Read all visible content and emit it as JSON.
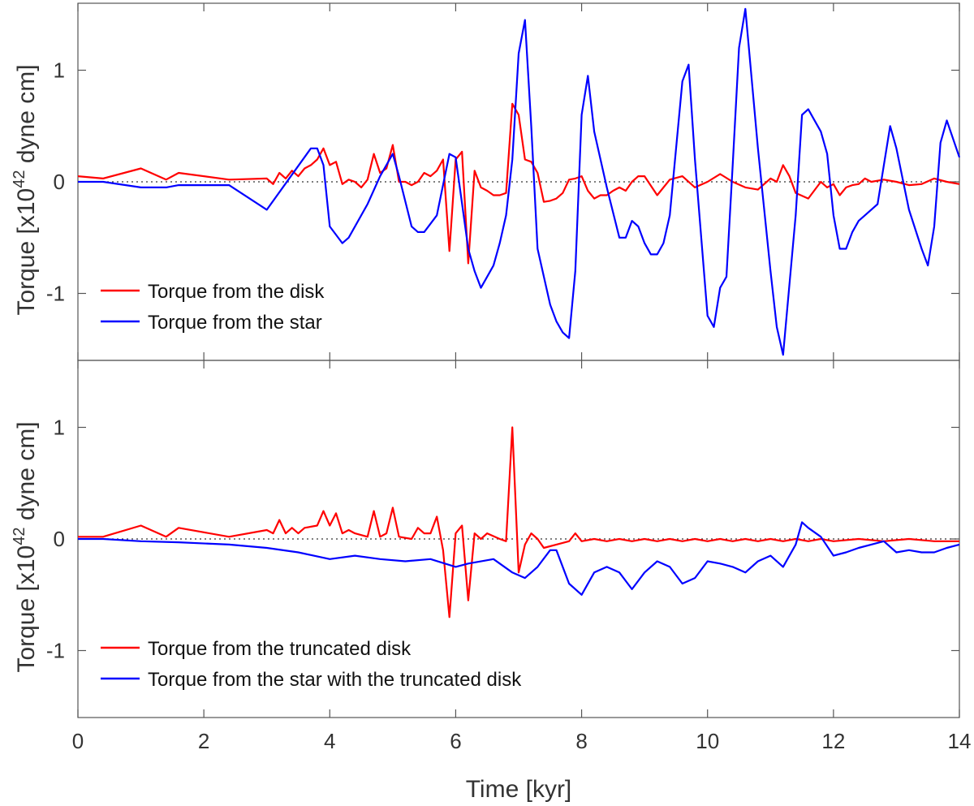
{
  "chart_data": [
    {
      "type": "line",
      "panel": "top",
      "title": "",
      "xlabel": "",
      "ylabel": "Torque [x10",
      "ylabel_exp": "42",
      "ylabel_unit": " dyne cm]",
      "xlim": [
        0,
        14
      ],
      "ylim": [
        -1.6,
        1.6
      ],
      "yticks": [
        -1,
        0,
        1
      ],
      "ytick_labels": [
        "-1",
        "0",
        "1"
      ],
      "zero_line": "dotted",
      "legend_position": "bottom-left",
      "series": [
        {
          "name": "Torque from the disk",
          "color": "#ff0000",
          "x": [
            0,
            0.4,
            1.0,
            1.4,
            1.6,
            2.4,
            3.0,
            3.1,
            3.2,
            3.3,
            3.4,
            3.5,
            3.6,
            3.7,
            3.8,
            3.9,
            4.0,
            4.1,
            4.2,
            4.3,
            4.4,
            4.5,
            4.6,
            4.7,
            4.8,
            4.9,
            5.0,
            5.1,
            5.2,
            5.3,
            5.4,
            5.5,
            5.6,
            5.7,
            5.8,
            5.9,
            6.0,
            6.1,
            6.2,
            6.3,
            6.4,
            6.5,
            6.6,
            6.7,
            6.8,
            6.9,
            7.0,
            7.1,
            7.2,
            7.3,
            7.4,
            7.5,
            7.6,
            7.7,
            7.8,
            7.9,
            8.0,
            8.1,
            8.2,
            8.3,
            8.4,
            8.5,
            8.6,
            8.7,
            8.8,
            8.9,
            9.0,
            9.2,
            9.4,
            9.6,
            9.8,
            10.0,
            10.2,
            10.4,
            10.6,
            10.8,
            11.0,
            11.1,
            11.2,
            11.3,
            11.4,
            11.6,
            11.8,
            11.9,
            12.0,
            12.1,
            12.2,
            12.3,
            12.4,
            12.5,
            12.6,
            12.8,
            13.0,
            13.2,
            13.4,
            13.6,
            13.8,
            14.0
          ],
          "y": [
            0.05,
            0.03,
            0.12,
            0.02,
            0.08,
            0.02,
            0.03,
            -0.02,
            0.08,
            0.03,
            0.1,
            0.05,
            0.12,
            0.15,
            0.2,
            0.3,
            0.15,
            0.18,
            -0.02,
            0.02,
            0.0,
            -0.05,
            0.02,
            0.25,
            0.08,
            0.12,
            0.33,
            0.0,
            0.0,
            -0.03,
            0.0,
            0.08,
            0.05,
            0.1,
            0.2,
            -0.62,
            0.2,
            0.27,
            -0.73,
            0.1,
            -0.05,
            -0.08,
            -0.12,
            -0.12,
            -0.1,
            0.7,
            0.6,
            0.2,
            0.18,
            0.08,
            -0.18,
            -0.17,
            -0.15,
            -0.1,
            0.02,
            0.03,
            0.05,
            -0.08,
            -0.15,
            -0.12,
            -0.12,
            -0.08,
            -0.05,
            -0.08,
            0.0,
            0.05,
            0.05,
            -0.12,
            0.02,
            0.05,
            -0.05,
            0.0,
            0.07,
            0.0,
            -0.05,
            -0.07,
            0.03,
            0.0,
            0.15,
            0.05,
            -0.1,
            -0.15,
            0.0,
            -0.05,
            -0.02,
            -0.12,
            -0.05,
            -0.03,
            -0.02,
            0.03,
            0.0,
            0.02,
            0.0,
            -0.03,
            -0.02,
            0.03,
            0.0,
            -0.02
          ]
        },
        {
          "name": "Torque from the star",
          "color": "#0000ff",
          "x": [
            0,
            0.4,
            1.0,
            1.4,
            1.6,
            2.4,
            3.0,
            3.7,
            3.8,
            3.9,
            4.0,
            4.2,
            4.3,
            4.6,
            4.8,
            5.0,
            5.1,
            5.3,
            5.4,
            5.5,
            5.7,
            5.9,
            6.0,
            6.2,
            6.3,
            6.4,
            6.5,
            6.6,
            6.7,
            6.8,
            6.9,
            7.0,
            7.1,
            7.2,
            7.3,
            7.5,
            7.6,
            7.7,
            7.8,
            7.9,
            8.0,
            8.1,
            8.2,
            8.4,
            8.6,
            8.7,
            8.8,
            8.9,
            9.0,
            9.1,
            9.2,
            9.3,
            9.4,
            9.6,
            9.7,
            9.8,
            10.0,
            10.1,
            10.2,
            10.3,
            10.4,
            10.5,
            10.6,
            10.8,
            11.0,
            11.1,
            11.2,
            11.4,
            11.5,
            11.6,
            11.7,
            11.8,
            11.9,
            12.0,
            12.1,
            12.2,
            12.3,
            12.4,
            12.5,
            12.7,
            12.9,
            13.0,
            13.2,
            13.4,
            13.5,
            13.6,
            13.7,
            13.8,
            14.0
          ],
          "y": [
            0.0,
            0.0,
            -0.05,
            -0.05,
            -0.03,
            -0.03,
            -0.25,
            0.3,
            0.3,
            0.15,
            -0.4,
            -0.55,
            -0.5,
            -0.2,
            0.05,
            0.25,
            0.05,
            -0.4,
            -0.45,
            -0.45,
            -0.3,
            0.25,
            0.22,
            -0.6,
            -0.8,
            -0.95,
            -0.85,
            -0.75,
            -0.55,
            -0.3,
            0.2,
            1.15,
            1.45,
            0.5,
            -0.6,
            -1.1,
            -1.25,
            -1.35,
            -1.4,
            -0.8,
            0.6,
            0.95,
            0.45,
            -0.05,
            -0.5,
            -0.5,
            -0.35,
            -0.4,
            -0.55,
            -0.65,
            -0.65,
            -0.55,
            -0.3,
            0.9,
            1.05,
            0.2,
            -1.2,
            -1.3,
            -0.95,
            -0.85,
            0.15,
            1.2,
            1.55,
            0.3,
            -0.8,
            -1.3,
            -1.55,
            -0.3,
            0.6,
            0.65,
            0.55,
            0.45,
            0.25,
            -0.3,
            -0.6,
            -0.6,
            -0.45,
            -0.35,
            -0.3,
            -0.2,
            0.5,
            0.3,
            -0.25,
            -0.6,
            -0.75,
            -0.4,
            0.35,
            0.55,
            0.22
          ]
        }
      ]
    },
    {
      "type": "line",
      "panel": "bottom",
      "title": "",
      "xlabel": "Time [kyr]",
      "ylabel": "Torque [x10",
      "ylabel_exp": "42",
      "ylabel_unit": " dyne cm]",
      "xlim": [
        0,
        14
      ],
      "ylim": [
        -1.6,
        1.6
      ],
      "yticks": [
        -1,
        0,
        1
      ],
      "ytick_labels": [
        "-1",
        "0",
        "1"
      ],
      "xticks": [
        0,
        2,
        4,
        6,
        8,
        10,
        12,
        14
      ],
      "xtick_labels": [
        "0",
        "2",
        "4",
        "6",
        "8",
        "10",
        "12",
        "14"
      ],
      "zero_line": "dotted",
      "legend_position": "bottom-left",
      "series": [
        {
          "name": "Torque from the truncated disk",
          "color": "#ff0000",
          "x": [
            0,
            0.4,
            1.0,
            1.4,
            1.6,
            2.4,
            3.0,
            3.1,
            3.2,
            3.3,
            3.4,
            3.5,
            3.6,
            3.8,
            3.9,
            4.0,
            4.1,
            4.2,
            4.3,
            4.4,
            4.6,
            4.7,
            4.8,
            4.9,
            5.0,
            5.1,
            5.3,
            5.4,
            5.5,
            5.6,
            5.7,
            5.8,
            5.9,
            6.0,
            6.1,
            6.2,
            6.3,
            6.4,
            6.5,
            6.7,
            6.8,
            6.9,
            7.0,
            7.1,
            7.2,
            7.3,
            7.4,
            7.6,
            7.8,
            7.9,
            8.0,
            8.2,
            8.4,
            8.6,
            8.8,
            9.0,
            9.2,
            9.4,
            9.6,
            9.8,
            10.0,
            10.2,
            10.4,
            10.6,
            10.8,
            11.0,
            11.2,
            11.4,
            11.6,
            11.8,
            12.0,
            12.4,
            12.8,
            13.2,
            13.6,
            14.0
          ],
          "y": [
            0.02,
            0.02,
            0.12,
            0.02,
            0.1,
            0.02,
            0.08,
            0.05,
            0.17,
            0.05,
            0.1,
            0.05,
            0.1,
            0.12,
            0.25,
            0.12,
            0.23,
            0.05,
            0.08,
            0.05,
            0.02,
            0.25,
            0.02,
            0.05,
            0.28,
            0.02,
            0.0,
            0.1,
            0.05,
            0.05,
            0.2,
            -0.1,
            -0.7,
            0.05,
            0.12,
            -0.55,
            0.05,
            0.0,
            0.05,
            0.0,
            -0.02,
            1.0,
            -0.3,
            -0.05,
            0.05,
            0.0,
            -0.08,
            -0.05,
            -0.02,
            0.05,
            -0.02,
            0.0,
            -0.02,
            0.0,
            -0.02,
            0.0,
            -0.02,
            0.0,
            -0.02,
            0.0,
            -0.02,
            0.0,
            -0.02,
            0.0,
            -0.02,
            0.0,
            -0.02,
            0.0,
            -0.02,
            0.0,
            -0.02,
            0.0,
            -0.02,
            0.0,
            -0.02,
            -0.02
          ]
        },
        {
          "name": "Torque from the star with the truncated disk",
          "color": "#0000ff",
          "x": [
            0,
            0.4,
            1.0,
            1.6,
            2.4,
            3.0,
            3.5,
            4.0,
            4.4,
            4.8,
            5.2,
            5.6,
            6.0,
            6.2,
            6.6,
            6.9,
            7.1,
            7.3,
            7.5,
            7.6,
            7.8,
            8.0,
            8.2,
            8.4,
            8.6,
            8.8,
            9.0,
            9.2,
            9.4,
            9.6,
            9.8,
            10.0,
            10.2,
            10.4,
            10.6,
            10.8,
            11.0,
            11.2,
            11.4,
            11.5,
            11.6,
            11.8,
            12.0,
            12.2,
            12.4,
            12.6,
            12.8,
            13.0,
            13.2,
            13.4,
            13.6,
            13.8,
            14.0
          ],
          "y": [
            0.0,
            0.0,
            -0.02,
            -0.03,
            -0.05,
            -0.08,
            -0.12,
            -0.18,
            -0.15,
            -0.18,
            -0.2,
            -0.18,
            -0.25,
            -0.22,
            -0.18,
            -0.3,
            -0.35,
            -0.25,
            -0.1,
            -0.1,
            -0.4,
            -0.5,
            -0.3,
            -0.25,
            -0.3,
            -0.45,
            -0.3,
            -0.2,
            -0.25,
            -0.4,
            -0.35,
            -0.2,
            -0.22,
            -0.25,
            -0.3,
            -0.2,
            -0.15,
            -0.25,
            -0.05,
            0.15,
            0.1,
            0.02,
            -0.15,
            -0.12,
            -0.08,
            -0.05,
            -0.02,
            -0.12,
            -0.1,
            -0.12,
            -0.12,
            -0.08,
            -0.05
          ]
        }
      ]
    }
  ]
}
